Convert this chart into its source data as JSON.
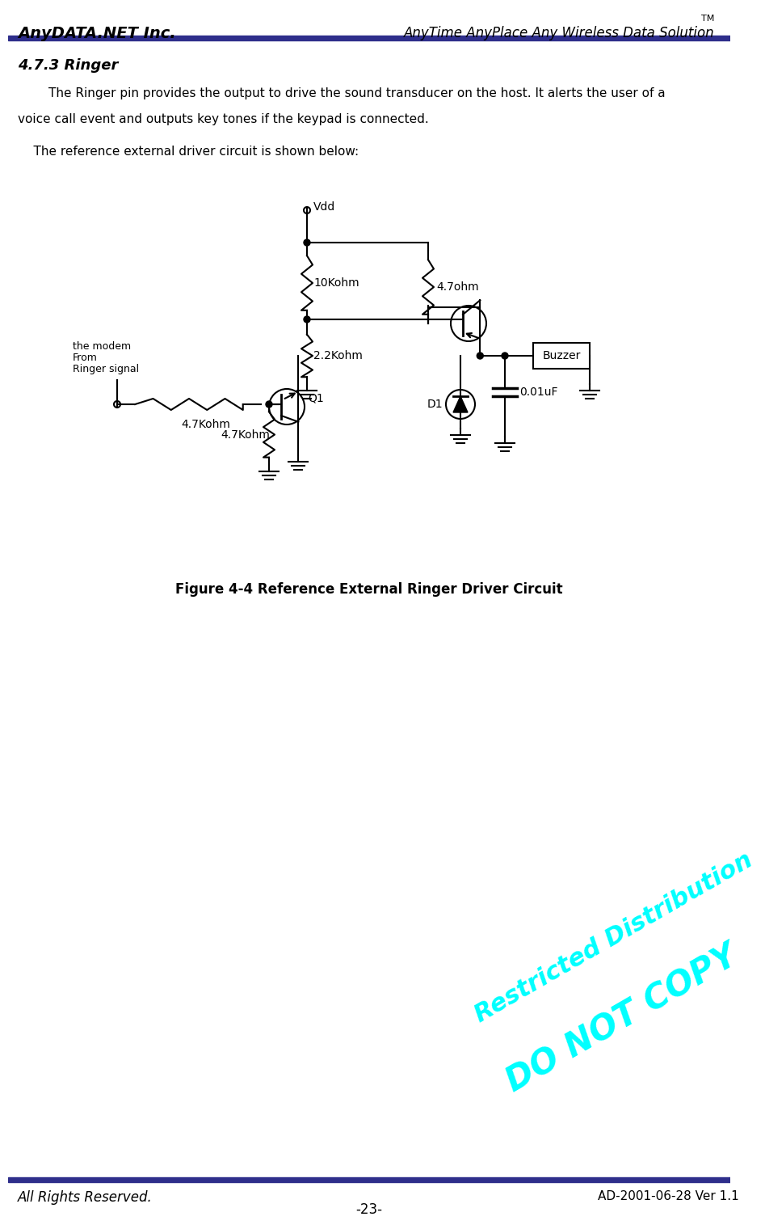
{
  "header_left": "AnyDATA.NET Inc.",
  "header_right": "AnyTime AnyPlace Any Wireless Data Solution",
  "header_right_tm": "TM",
  "header_bar_color": "#2e2e8b",
  "section_title": "4.7.3 Ringer",
  "body_text1": "The Ringer pin provides the output to drive the sound transducer on the host. It alerts the user of a",
  "body_text2": "voice call event and outputs key tones if the keypad is connected.",
  "body_text3": "    The reference external driver circuit is shown below:",
  "figure_caption": "Figure 4-4 Reference External Ringer Driver Circuit",
  "footer_left": "All Rights Reserved.",
  "footer_right": "AD-2001-06-28 Ver 1.1",
  "footer_page": "-23-",
  "footer_bar_color": "#2e2e8b",
  "watermark_line1": "Restricted Distribution",
  "watermark_line2": "DO NOT COPY",
  "watermark_color": "#00ffff",
  "bg_color": "#ffffff",
  "text_color": "#000000"
}
